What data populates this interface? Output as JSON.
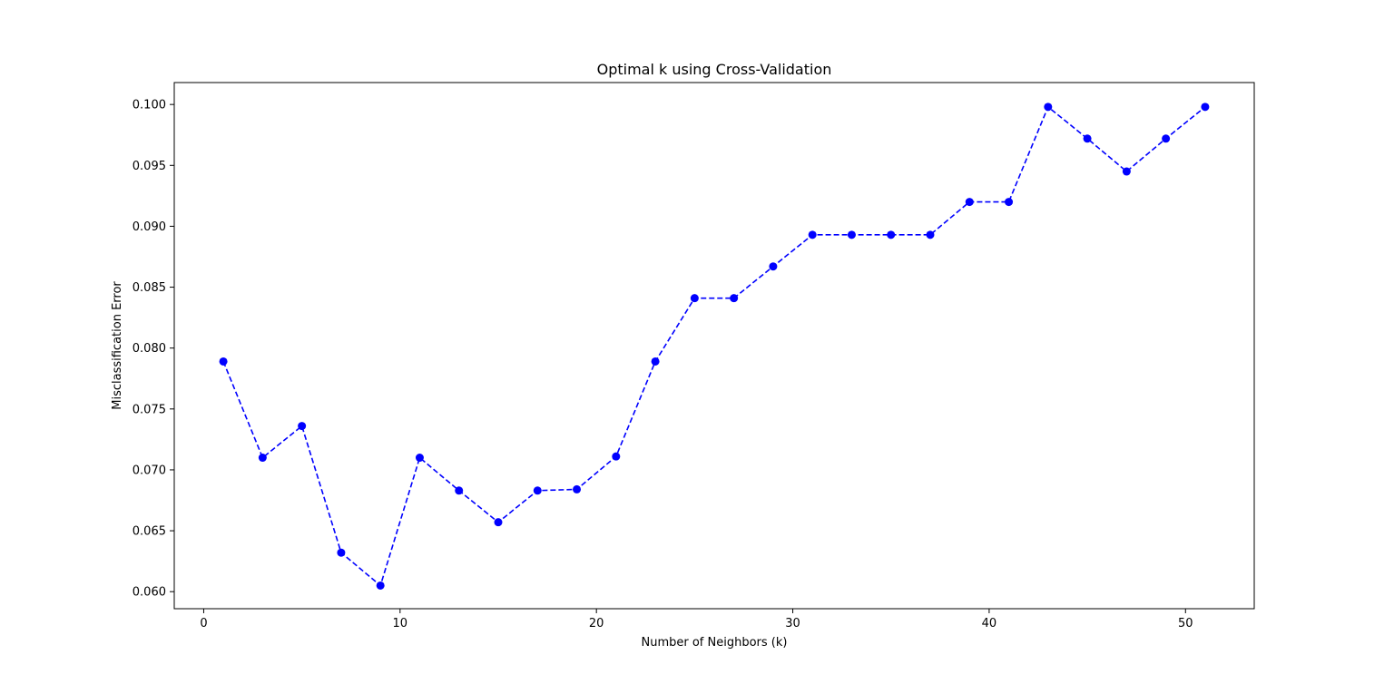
{
  "chart_data": {
    "type": "line",
    "title": "Optimal k using Cross-Validation",
    "xlabel": "Number of Neighbors (k)",
    "ylabel": "Misclassification Error",
    "xlim": [
      -1.5,
      53.5
    ],
    "ylim": [
      0.0586,
      0.1018
    ],
    "xticks": [
      0,
      10,
      20,
      30,
      40,
      50
    ],
    "yticks": [
      0.06,
      0.065,
      0.07,
      0.075,
      0.08,
      0.085,
      0.09,
      0.095,
      0.1
    ],
    "xtick_labels": [
      "0",
      "10",
      "20",
      "30",
      "40",
      "50"
    ],
    "ytick_labels": [
      "0.060",
      "0.065",
      "0.070",
      "0.075",
      "0.080",
      "0.085",
      "0.090",
      "0.095",
      "0.100"
    ],
    "grid": false,
    "legend": "none",
    "series": [
      {
        "color": "#0000ff",
        "line_style": "dashed",
        "marker": "circle",
        "x": [
          1,
          3,
          5,
          7,
          9,
          11,
          13,
          15,
          17,
          19,
          21,
          23,
          25,
          27,
          29,
          31,
          33,
          35,
          37,
          39,
          41,
          43,
          45,
          47,
          49,
          51
        ],
        "y": [
          0.0789,
          0.071,
          0.0736,
          0.0632,
          0.0605,
          0.071,
          0.0683,
          0.0657,
          0.0683,
          0.0684,
          0.0711,
          0.0789,
          0.0841,
          0.0841,
          0.0867,
          0.0893,
          0.0893,
          0.0893,
          0.0893,
          0.092,
          0.092,
          0.0998,
          0.0972,
          0.0945,
          0.0972,
          0.0998
        ]
      }
    ]
  }
}
